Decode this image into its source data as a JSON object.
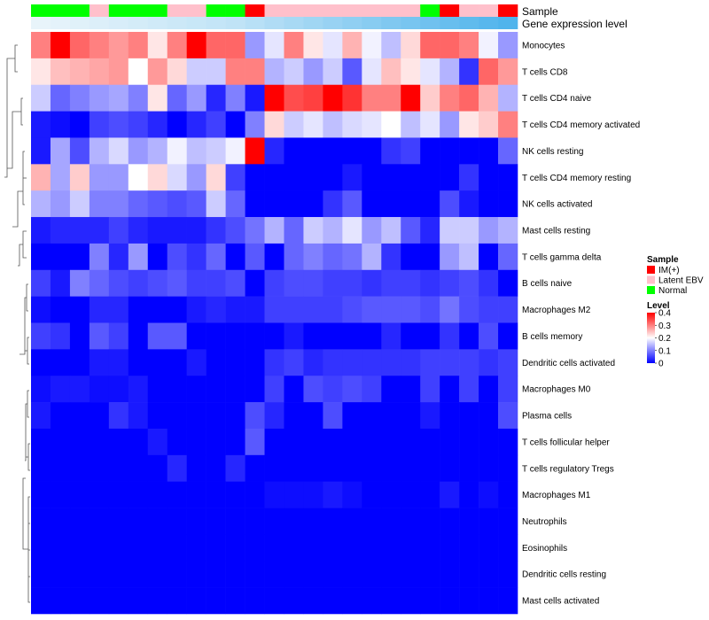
{
  "chart_data": {
    "type": "heatmap",
    "annotation_labels": {
      "sample": "Sample",
      "expression": "Gene expression level"
    },
    "legends": {
      "sample": {
        "title": "Sample",
        "entries": [
          {
            "label": "IM(+)",
            "color": "#ff0000"
          },
          {
            "label": "Latent EBV",
            "color": "#ffc0cb"
          },
          {
            "label": "Normal",
            "color": "#00ff00"
          }
        ]
      },
      "level": {
        "title": "Level",
        "ticks": [
          "0.4",
          "0.3",
          "0.2",
          "0.1",
          "0"
        ],
        "colors": {
          "low": "#0000ff",
          "mid": "#ffffff",
          "high": "#ff0000"
        },
        "range": [
          0,
          0.4
        ]
      }
    },
    "sample_groups": [
      "Normal",
      "Normal",
      "Normal",
      "Latent EBV",
      "Normal",
      "Normal",
      "Normal",
      "Latent EBV",
      "Latent EBV",
      "Normal",
      "Normal",
      "IM(+)",
      "Latent EBV",
      "Latent EBV",
      "Latent EBV",
      "Latent EBV",
      "Latent EBV",
      "Latent EBV",
      "Latent EBV",
      "Latent EBV",
      "Normal",
      "IM(+)",
      "Latent EBV",
      "Latent EBV",
      "IM(+)"
    ],
    "expression_level": [
      0.08,
      0.09,
      0.1,
      0.11,
      0.12,
      0.13,
      0.14,
      0.15,
      0.16,
      0.17,
      0.18,
      0.2,
      0.22,
      0.24,
      0.26,
      0.28,
      0.3,
      0.32,
      0.34,
      0.36,
      0.38,
      0.4,
      0.42,
      0.44,
      0.46
    ],
    "rows": [
      "Monocytes",
      "T cells CD8",
      "T cells CD4 naive",
      "T cells CD4 memory activated",
      "NK cells resting",
      "T cells CD4 memory resting",
      "NK cells activated",
      "Mast cells resting",
      "T cells gamma delta",
      "B cells naive",
      "Macrophages M2",
      "B cells memory",
      "Dendritic cells activated",
      "Macrophages M0",
      "Plasma cells",
      "T cells follicular helper",
      "T cells regulatory  Tregs",
      "Macrophages M1",
      "Neutrophils",
      "Eosinophils",
      "Dendritic cells resting",
      "Mast cells activated"
    ],
    "values": [
      [
        0.3,
        0.4,
        0.32,
        0.3,
        0.28,
        0.3,
        0.22,
        0.3,
        0.4,
        0.32,
        0.32,
        0.12,
        0.18,
        0.3,
        0.22,
        0.18,
        0.26,
        0.19,
        0.15,
        0.23,
        0.32,
        0.32,
        0.3,
        0.19,
        0.12
      ],
      [
        0.22,
        0.25,
        0.26,
        0.27,
        0.28,
        0.2,
        0.28,
        0.23,
        0.16,
        0.16,
        0.3,
        0.3,
        0.14,
        0.16,
        0.12,
        0.16,
        0.07,
        0.18,
        0.25,
        0.22,
        0.18,
        0.14,
        0.04,
        0.32,
        0.28
      ],
      [
        0.16,
        0.08,
        0.1,
        0.12,
        0.13,
        0.1,
        0.22,
        0.08,
        0.12,
        0.03,
        0.1,
        0.02,
        0.4,
        0.34,
        0.35,
        0.4,
        0.36,
        0.3,
        0.3,
        0.4,
        0.24,
        0.3,
        0.32,
        0.26,
        0.14
      ],
      [
        0.02,
        0.01,
        0.0,
        0.05,
        0.06,
        0.05,
        0.03,
        0.0,
        0.03,
        0.05,
        0.0,
        0.1,
        0.23,
        0.16,
        0.18,
        0.15,
        0.17,
        0.18,
        0.2,
        0.15,
        0.18,
        0.12,
        0.22,
        0.24,
        0.3
      ],
      [
        0.02,
        0.13,
        0.06,
        0.14,
        0.17,
        0.12,
        0.14,
        0.19,
        0.15,
        0.16,
        0.19,
        0.4,
        0.03,
        0.0,
        0.0,
        0.0,
        0.0,
        0.0,
        0.04,
        0.05,
        0.0,
        0.0,
        0.0,
        0.0,
        0.08
      ],
      [
        0.26,
        0.13,
        0.24,
        0.12,
        0.12,
        0.2,
        0.23,
        0.17,
        0.12,
        0.23,
        0.05,
        0.0,
        0.0,
        0.0,
        0.0,
        0.0,
        0.02,
        0.0,
        0.0,
        0.0,
        0.0,
        0.0,
        0.04,
        0.0,
        0.0
      ],
      [
        0.14,
        0.12,
        0.16,
        0.1,
        0.1,
        0.08,
        0.07,
        0.06,
        0.07,
        0.16,
        0.08,
        0.0,
        0.0,
        0.0,
        0.0,
        0.04,
        0.07,
        0.0,
        0.0,
        0.0,
        0.0,
        0.06,
        0.02,
        0.0,
        0.0
      ],
      [
        0.02,
        0.03,
        0.03,
        0.03,
        0.05,
        0.03,
        0.02,
        0.02,
        0.02,
        0.04,
        0.06,
        0.09,
        0.14,
        0.08,
        0.16,
        0.14,
        0.18,
        0.12,
        0.15,
        0.07,
        0.03,
        0.16,
        0.16,
        0.12,
        0.14
      ],
      [
        0.0,
        0.0,
        0.0,
        0.1,
        0.03,
        0.12,
        0.0,
        0.06,
        0.04,
        0.08,
        0.0,
        0.07,
        0.0,
        0.08,
        0.1,
        0.08,
        0.09,
        0.14,
        0.04,
        0.0,
        0.0,
        0.12,
        0.15,
        0.0,
        0.08
      ],
      [
        0.05,
        0.02,
        0.1,
        0.08,
        0.06,
        0.05,
        0.06,
        0.07,
        0.05,
        0.05,
        0.06,
        0.0,
        0.05,
        0.06,
        0.06,
        0.05,
        0.05,
        0.04,
        0.05,
        0.05,
        0.04,
        0.05,
        0.06,
        0.04,
        0.0
      ],
      [
        0.01,
        0.0,
        0.0,
        0.03,
        0.03,
        0.0,
        0.0,
        0.0,
        0.02,
        0.03,
        0.02,
        0.02,
        0.05,
        0.05,
        0.05,
        0.05,
        0.06,
        0.07,
        0.07,
        0.07,
        0.06,
        0.09,
        0.06,
        0.05,
        0.05
      ],
      [
        0.05,
        0.04,
        0.0,
        0.07,
        0.05,
        0.0,
        0.07,
        0.07,
        0.0,
        0.0,
        0.0,
        0.0,
        0.0,
        0.02,
        0.0,
        0.0,
        0.0,
        0.0,
        0.03,
        0.0,
        0.0,
        0.04,
        0.0,
        0.06,
        0.0
      ],
      [
        0.0,
        0.0,
        0.0,
        0.02,
        0.02,
        0.0,
        0.0,
        0.0,
        0.02,
        0.0,
        0.0,
        0.0,
        0.04,
        0.05,
        0.03,
        0.04,
        0.04,
        0.04,
        0.04,
        0.04,
        0.05,
        0.05,
        0.05,
        0.04,
        0.05
      ],
      [
        0.01,
        0.02,
        0.02,
        0.01,
        0.01,
        0.02,
        0.0,
        0.0,
        0.0,
        0.0,
        0.0,
        0.0,
        0.05,
        0.0,
        0.06,
        0.05,
        0.06,
        0.05,
        0.0,
        0.0,
        0.05,
        0.0,
        0.05,
        0.0,
        0.05
      ],
      [
        0.02,
        0.0,
        0.0,
        0.0,
        0.04,
        0.02,
        0.0,
        0.0,
        0.0,
        0.0,
        0.0,
        0.06,
        0.03,
        0.0,
        0.0,
        0.06,
        0.0,
        0.0,
        0.0,
        0.0,
        0.02,
        0.0,
        0.0,
        0.0,
        0.06
      ],
      [
        0.0,
        0.0,
        0.0,
        0.0,
        0.0,
        0.0,
        0.02,
        0.0,
        0.0,
        0.0,
        0.0,
        0.07,
        0.0,
        0.0,
        0.0,
        0.0,
        0.0,
        0.0,
        0.0,
        0.0,
        0.0,
        0.0,
        0.0,
        0.0,
        0.0
      ],
      [
        0.0,
        0.0,
        0.0,
        0.0,
        0.0,
        0.0,
        0.0,
        0.03,
        0.0,
        0.0,
        0.03,
        0.0,
        0.0,
        0.0,
        0.0,
        0.0,
        0.0,
        0.0,
        0.0,
        0.0,
        0.0,
        0.0,
        0.0,
        0.0,
        0.0
      ],
      [
        0.0,
        0.0,
        0.0,
        0.0,
        0.0,
        0.0,
        0.0,
        0.0,
        0.0,
        0.0,
        0.0,
        0.0,
        0.01,
        0.01,
        0.01,
        0.02,
        0.01,
        0.0,
        0.0,
        0.0,
        0.0,
        0.02,
        0.0,
        0.01,
        0.0
      ],
      [
        0.0,
        0.0,
        0.0,
        0.0,
        0.0,
        0.0,
        0.0,
        0.0,
        0.0,
        0.0,
        0.0,
        0.0,
        0.0,
        0.0,
        0.0,
        0.0,
        0.0,
        0.0,
        0.0,
        0.0,
        0.0,
        0.0,
        0.0,
        0.0,
        0.0
      ],
      [
        0.0,
        0.0,
        0.0,
        0.0,
        0.0,
        0.0,
        0.0,
        0.0,
        0.0,
        0.0,
        0.0,
        0.0,
        0.0,
        0.0,
        0.0,
        0.0,
        0.0,
        0.0,
        0.0,
        0.0,
        0.0,
        0.0,
        0.0,
        0.0,
        0.0
      ],
      [
        0.0,
        0.0,
        0.0,
        0.0,
        0.0,
        0.0,
        0.0,
        0.0,
        0.0,
        0.0,
        0.0,
        0.0,
        0.0,
        0.0,
        0.0,
        0.0,
        0.0,
        0.0,
        0.0,
        0.0,
        0.0,
        0.0,
        0.0,
        0.0,
        0.0
      ],
      [
        0.0,
        0.0,
        0.0,
        0.0,
        0.0,
        0.0,
        0.0,
        0.0,
        0.0,
        0.0,
        0.0,
        0.0,
        0.0,
        0.0,
        0.0,
        0.0,
        0.0,
        0.0,
        0.0,
        0.0,
        0.0,
        0.0,
        0.0,
        0.0,
        0.0
      ]
    ]
  }
}
